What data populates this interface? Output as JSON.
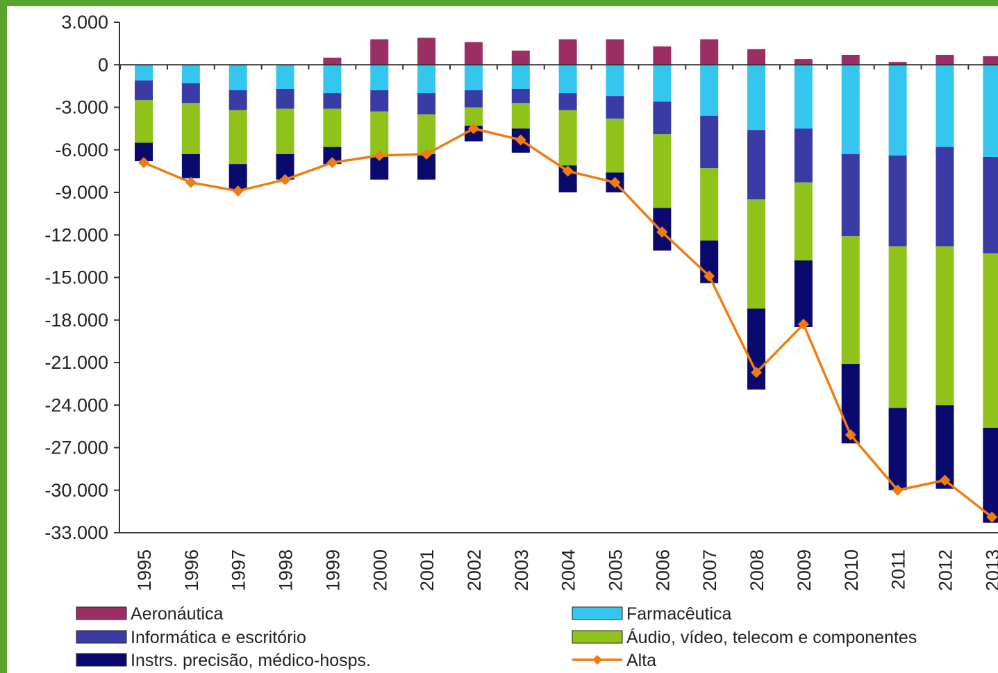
{
  "chart_data": {
    "type": "bar",
    "stacked": true,
    "categories": [
      "1995",
      "1996",
      "1997",
      "1998",
      "1999",
      "2000",
      "2001",
      "2002",
      "2003",
      "2004",
      "2005",
      "2006",
      "2007",
      "2008",
      "2009",
      "2010",
      "2011",
      "2012",
      "2013"
    ],
    "ylim": [
      -33000,
      3000
    ],
    "y_ticks": [
      "3.000",
      "0",
      "-3.000",
      "-6.000",
      "-9.000",
      "-12.000",
      "-15.000",
      "-18.000",
      "-21.000",
      "-24.000",
      "-27.000",
      "-30.000",
      "-33.000"
    ],
    "series": [
      {
        "name": "Aeronáutica",
        "color": "#9b2f64",
        "values": [
          0,
          0,
          0,
          0,
          500,
          1800,
          1900,
          1600,
          1000,
          1800,
          1800,
          1300,
          1800,
          1100,
          400,
          700,
          200,
          700,
          600
        ]
      },
      {
        "name": "Farmacêutica",
        "color": "#35c6f0",
        "values": [
          -1100,
          -1300,
          -1800,
          -1700,
          -2000,
          -1800,
          -2000,
          -1800,
          -1700,
          -2000,
          -2200,
          -2600,
          -3600,
          -4600,
          -4500,
          -6300,
          -6400,
          -5800,
          -6500
        ]
      },
      {
        "name": "Informática e escritório",
        "color": "#3b3ba6",
        "values": [
          -1400,
          -1400,
          -1400,
          -1400,
          -1100,
          -1500,
          -1500,
          -1200,
          -1000,
          -1200,
          -1600,
          -2300,
          -3700,
          -4900,
          -3800,
          -5800,
          -6400,
          -7000,
          -6800
        ]
      },
      {
        "name": "Áudio, vídeo, telecom e componentes",
        "color": "#8fc21b",
        "values": [
          -3000,
          -3600,
          -3800,
          -3200,
          -2700,
          -3200,
          -2800,
          -1300,
          -1800,
          -3900,
          -3800,
          -5200,
          -5100,
          -7700,
          -5500,
          -9000,
          -11400,
          -11200,
          -12300
        ]
      },
      {
        "name": "Instrs. precisão, médico-hosps.",
        "color": "#0a0a6e",
        "values": [
          -1300,
          -1700,
          -1800,
          -1800,
          -1200,
          -1600,
          -1800,
          -1100,
          -1700,
          -1900,
          -1400,
          -3000,
          -3000,
          -5700,
          -4700,
          -5600,
          -5800,
          -5900,
          -6700
        ]
      }
    ],
    "line": {
      "name": "Alta",
      "color": "#f07c10",
      "values": [
        -6900,
        -8300,
        -8900,
        -8100,
        -6900,
        -6400,
        -6300,
        -4500,
        -5300,
        -7500,
        -8300,
        -11800,
        -14900,
        -21700,
        -18300,
        -26100,
        -30000,
        -29300,
        -31900
      ]
    },
    "legend_position": "bottom",
    "grid": false
  }
}
